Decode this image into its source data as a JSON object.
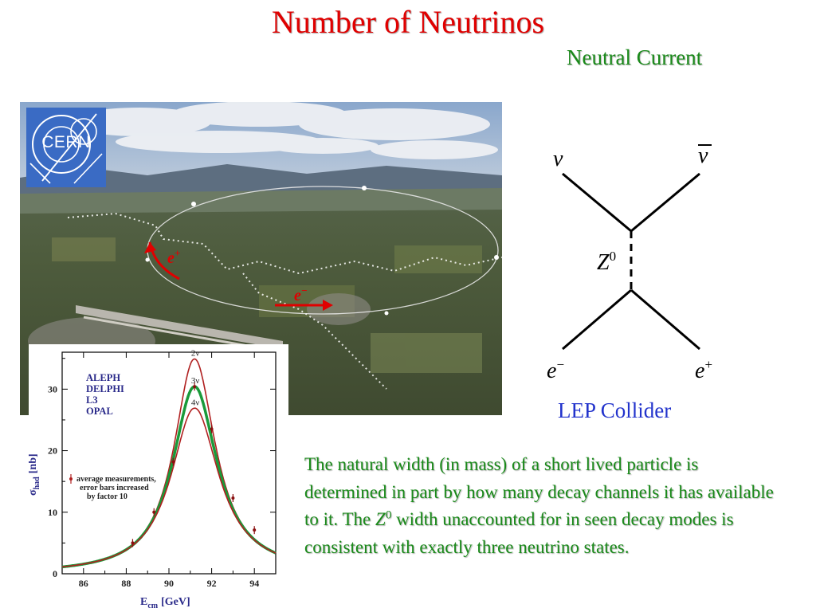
{
  "slide": {
    "title": "Number of Neutrinos",
    "subtitle": "Neutral Current"
  },
  "photo": {
    "logo_text": "CERN",
    "positron_label": "e",
    "positron_sup": "+",
    "electron_label": "e",
    "electron_sup": "−",
    "arrow_color": "#e00000"
  },
  "feynman": {
    "nu": "ν",
    "nubar": "ν",
    "z": "Z",
    "z_sup": "0",
    "e_minus": "e",
    "e_minus_sup": "−",
    "e_plus": "e",
    "e_plus_sup": "+",
    "caption": "LEP Collider"
  },
  "note": {
    "part1": "The natural width (in mass) of a short lived particle is determined in part by how many decay channels it has available to it.  The ",
    "z": "Z",
    "z_sup": "0",
    "part2": " width unaccounted for in seen decay modes is consistent with exactly three neutrino states."
  },
  "chart_data": {
    "type": "line",
    "xlabel": "E",
    "xlabel_sub": "cm",
    "xlabel_unit": "[GeV]",
    "ylabel": "σ",
    "ylabel_sub": "had",
    "ylabel_unit": "[nb]",
    "xlim": [
      85,
      95
    ],
    "ylim": [
      0,
      36
    ],
    "xticks": [
      86,
      88,
      90,
      92,
      94
    ],
    "yticks": [
      0,
      10,
      20,
      30
    ],
    "experiments": [
      "ALEPH",
      "DELPHI",
      "L3",
      "OPAL"
    ],
    "legend_note": [
      "average measurements,",
      "error bars increased",
      "by factor 10"
    ],
    "series": [
      {
        "name": "2ν",
        "color": "#b02020",
        "peak": 34.9,
        "m": 91.19,
        "g": 2.33
      },
      {
        "name": "3ν",
        "color": "#1a9a3a",
        "peak": 30.4,
        "m": 91.19,
        "g": 2.5
      },
      {
        "name": "4ν",
        "color": "#b02020",
        "peak": 26.9,
        "m": 91.19,
        "g": 2.67
      }
    ],
    "measurements": {
      "x": [
        88.3,
        89.3,
        90.2,
        91.2,
        92.0,
        93.0,
        94.0
      ],
      "y": [
        5.0,
        10.0,
        18.2,
        30.4,
        23.5,
        12.3,
        7.1
      ]
    }
  }
}
